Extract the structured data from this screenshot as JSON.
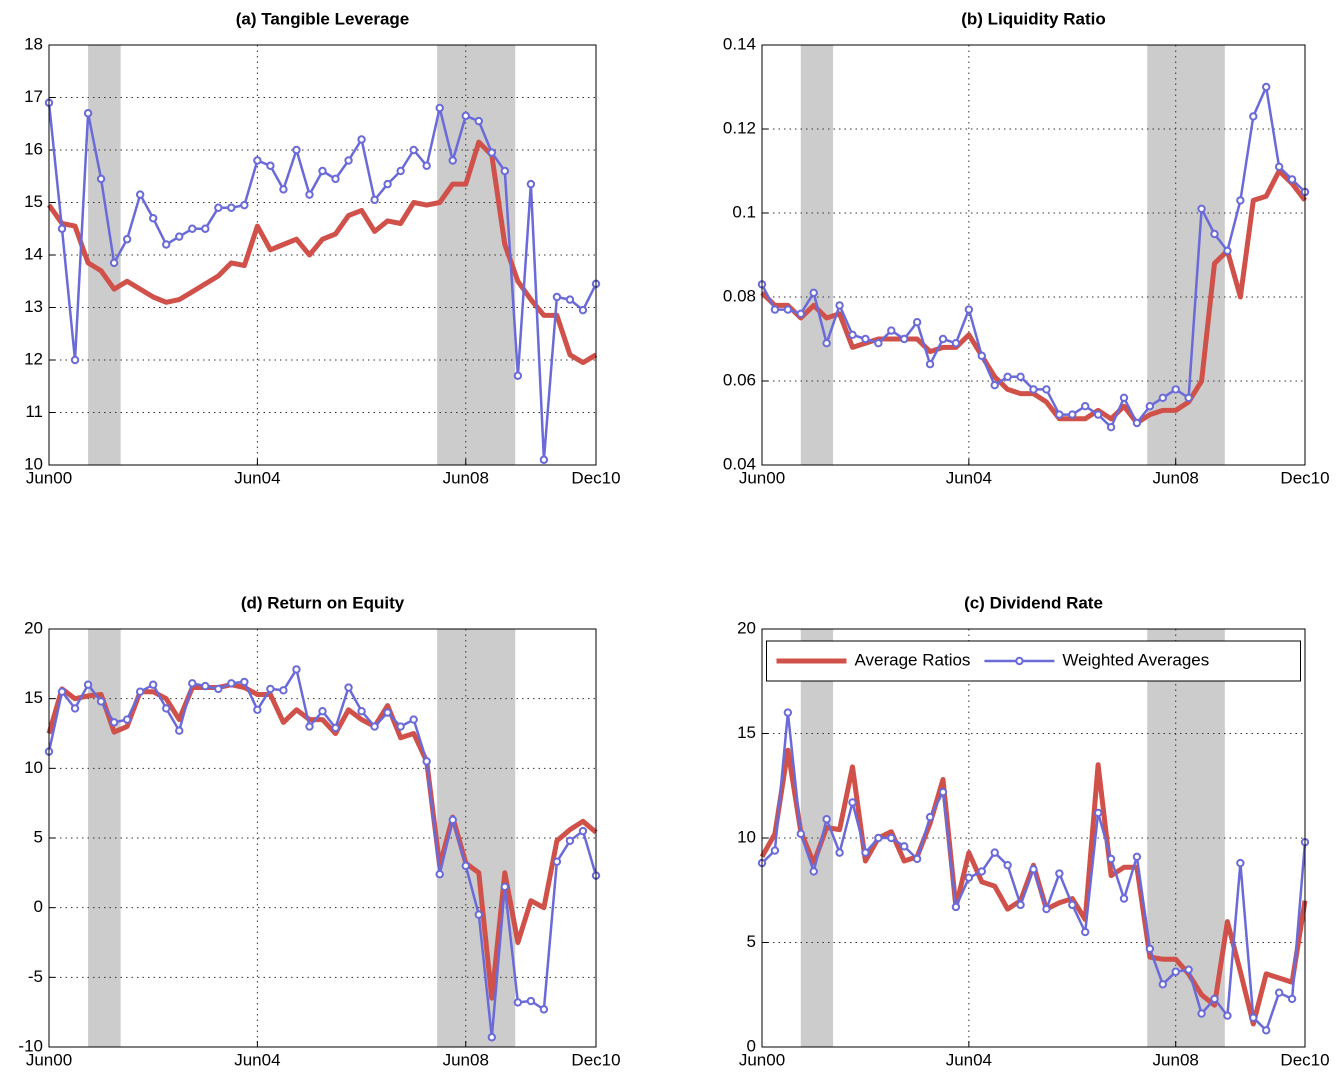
{
  "chart_data": [
    {
      "type": "line",
      "title": "(a) Tangible Leverage",
      "categories": [
        "Jun00",
        null,
        null,
        null,
        null,
        null,
        null,
        null,
        null,
        null,
        null,
        null,
        null,
        null,
        null,
        null,
        "Jun04",
        null,
        null,
        null,
        null,
        null,
        null,
        null,
        null,
        null,
        null,
        null,
        null,
        null,
        null,
        null,
        "Jun08",
        null,
        null,
        null,
        null,
        null,
        null,
        null,
        null,
        null,
        "Dec10"
      ],
      "ylim": [
        10,
        18
      ],
      "yticks": [
        10,
        11,
        12,
        13,
        14,
        15,
        16,
        17,
        18
      ],
      "grid": true,
      "shaded_spans": [
        [
          3,
          5.5
        ],
        [
          29.8,
          35.8
        ]
      ],
      "series": [
        {
          "color": "#d0504a",
          "values": [
            14.95,
            14.6,
            14.55,
            13.85,
            13.7,
            13.35,
            13.5,
            13.35,
            13.2,
            13.1,
            13.15,
            13.3,
            13.45,
            13.6,
            13.85,
            13.8,
            14.55,
            14.1,
            14.2,
            14.3,
            14.0,
            14.3,
            14.4,
            14.75,
            14.85,
            14.45,
            14.65,
            14.6,
            15.0,
            14.95,
            15.0,
            15.35,
            15.35,
            16.15,
            15.9,
            14.2,
            13.5,
            13.15,
            12.85,
            12.85,
            12.1,
            11.95,
            12.1
          ]
        },
        {
          "color": "#6a6ad8",
          "values": [
            16.9,
            14.5,
            12.0,
            16.7,
            15.45,
            13.85,
            14.3,
            15.15,
            14.7,
            14.2,
            14.35,
            14.5,
            14.5,
            14.9,
            14.9,
            14.95,
            15.8,
            15.7,
            15.25,
            16.0,
            15.15,
            15.6,
            15.45,
            15.8,
            16.2,
            15.05,
            15.35,
            15.6,
            16.0,
            15.7,
            16.8,
            15.8,
            16.65,
            16.55,
            15.95,
            15.6,
            11.7,
            15.35,
            10.1,
            13.2,
            13.15,
            12.95,
            13.45
          ]
        }
      ]
    },
    {
      "type": "line",
      "title": "(b) Liquidity Ratio",
      "categories": [
        "Jun00",
        null,
        null,
        null,
        null,
        null,
        null,
        null,
        null,
        null,
        null,
        null,
        null,
        null,
        null,
        null,
        "Jun04",
        null,
        null,
        null,
        null,
        null,
        null,
        null,
        null,
        null,
        null,
        null,
        null,
        null,
        null,
        null,
        "Jun08",
        null,
        null,
        null,
        null,
        null,
        null,
        null,
        null,
        null,
        "Dec10"
      ],
      "ylim": [
        0.04,
        0.14
      ],
      "yticks": [
        0.04,
        0.06,
        0.08,
        0.1,
        0.12,
        0.14
      ],
      "grid": true,
      "shaded_spans": [
        [
          3,
          5.5
        ],
        [
          29.8,
          35.8
        ]
      ],
      "series": [
        {
          "color": "#d0504a",
          "values": [
            0.081,
            0.078,
            0.078,
            0.075,
            0.078,
            0.075,
            0.076,
            0.068,
            0.069,
            0.07,
            0.07,
            0.07,
            0.07,
            0.067,
            0.068,
            0.068,
            0.071,
            0.066,
            0.061,
            0.058,
            0.057,
            0.057,
            0.055,
            0.051,
            0.051,
            0.051,
            0.053,
            0.051,
            0.054,
            0.05,
            0.052,
            0.053,
            0.053,
            0.055,
            0.06,
            0.088,
            0.091,
            0.08,
            0.103,
            0.104,
            0.11,
            0.107,
            0.103
          ]
        },
        {
          "color": "#6a6ad8",
          "values": [
            0.083,
            0.077,
            0.077,
            0.076,
            0.081,
            0.069,
            0.078,
            0.071,
            0.07,
            0.069,
            0.072,
            0.07,
            0.074,
            0.064,
            0.07,
            0.069,
            0.077,
            0.066,
            0.059,
            0.061,
            0.061,
            0.058,
            0.058,
            0.052,
            0.052,
            0.054,
            0.052,
            0.049,
            0.056,
            0.05,
            0.054,
            0.056,
            0.058,
            0.056,
            0.101,
            0.095,
            0.091,
            0.103,
            0.123,
            0.13,
            0.111,
            0.108,
            0.105
          ]
        }
      ]
    },
    {
      "type": "line",
      "title": "(d) Return on Equity",
      "categories": [
        "Jun00",
        null,
        null,
        null,
        null,
        null,
        null,
        null,
        null,
        null,
        null,
        null,
        null,
        null,
        null,
        null,
        "Jun04",
        null,
        null,
        null,
        null,
        null,
        null,
        null,
        null,
        null,
        null,
        null,
        null,
        null,
        null,
        null,
        "Jun08",
        null,
        null,
        null,
        null,
        null,
        null,
        null,
        null,
        null,
        "Dec10"
      ],
      "ylim": [
        -10,
        20
      ],
      "yticks": [
        -10,
        -5,
        0,
        5,
        10,
        15,
        20
      ],
      "grid": true,
      "shaded_spans": [
        [
          3,
          5.5
        ],
        [
          29.8,
          35.8
        ]
      ],
      "series": [
        {
          "color": "#d0504a",
          "values": [
            12.5,
            15.7,
            15,
            15.2,
            15.3,
            12.6,
            13,
            15.5,
            15.5,
            15,
            13.5,
            15.8,
            15.8,
            15.8,
            16,
            15.8,
            15.3,
            15.3,
            13.3,
            14.2,
            13.5,
            13.5,
            12.5,
            14.2,
            13.5,
            13,
            14.5,
            12.2,
            12.5,
            10.5,
            3,
            6.5,
            3.2,
            2.5,
            -6.5,
            2.5,
            -2.5,
            0.5,
            0,
            4.8,
            5.6,
            6.2,
            5.4
          ]
        },
        {
          "color": "#6a6ad8",
          "values": [
            11.2,
            15.5,
            14.3,
            16,
            14.8,
            13.3,
            13.5,
            15.5,
            16,
            14.3,
            12.7,
            16.1,
            15.9,
            15.7,
            16.1,
            16.2,
            14.2,
            15.7,
            15.6,
            17.1,
            13,
            14.1,
            12.9,
            15.8,
            14.1,
            13,
            14,
            13,
            13.5,
            10.5,
            2.4,
            6.3,
            3,
            -0.5,
            -9.3,
            1.5,
            -6.8,
            -6.7,
            -7.3,
            3.3,
            4.8,
            5.5,
            2.3
          ]
        }
      ]
    },
    {
      "type": "line",
      "title": "(c) Dividend Rate",
      "categories": [
        "Jun00",
        null,
        null,
        null,
        null,
        null,
        null,
        null,
        null,
        null,
        null,
        null,
        null,
        null,
        null,
        null,
        "Jun04",
        null,
        null,
        null,
        null,
        null,
        null,
        null,
        null,
        null,
        null,
        null,
        null,
        null,
        null,
        null,
        "Jun08",
        null,
        null,
        null,
        null,
        null,
        null,
        null,
        null,
        null,
        "Dec10"
      ],
      "ylim": [
        0,
        20
      ],
      "yticks": [
        0,
        5,
        10,
        15,
        20
      ],
      "grid": true,
      "shaded_spans": [
        [
          3,
          5.5
        ],
        [
          29.8,
          35.8
        ]
      ],
      "legend": "north",
      "series": [
        {
          "name": "Average Ratios",
          "color": "#d0504a",
          "values": [
            9.1,
            10.2,
            14.2,
            10.3,
            8.8,
            10.5,
            10.4,
            13.4,
            8.9,
            10,
            10.3,
            8.9,
            9.1,
            10.7,
            12.8,
            6.7,
            9.3,
            7.9,
            7.7,
            6.6,
            7,
            8.7,
            6.6,
            6.9,
            7.1,
            6.1,
            13.5,
            8.2,
            8.6,
            8.6,
            4.3,
            4.2,
            4.2,
            3.5,
            2.5,
            2.0,
            6,
            3.6,
            1.1,
            3.5,
            3.3,
            3.1,
            7.0
          ]
        },
        {
          "name": "Weighted Averages",
          "color": "#6a6ad8",
          "values": [
            8.8,
            9.4,
            16,
            10.2,
            8.4,
            10.9,
            9.3,
            11.7,
            9.3,
            10,
            10,
            9.6,
            9,
            11,
            12.2,
            6.7,
            8.1,
            8.4,
            9.3,
            8.7,
            6.8,
            8.5,
            6.6,
            8.3,
            6.8,
            5.5,
            11.2,
            9,
            7.1,
            9.1,
            4.7,
            3,
            3.6,
            3.7,
            1.6,
            2.3,
            1.5,
            8.8,
            1.4,
            0.8,
            2.6,
            2.3,
            9.8
          ]
        }
      ]
    }
  ]
}
